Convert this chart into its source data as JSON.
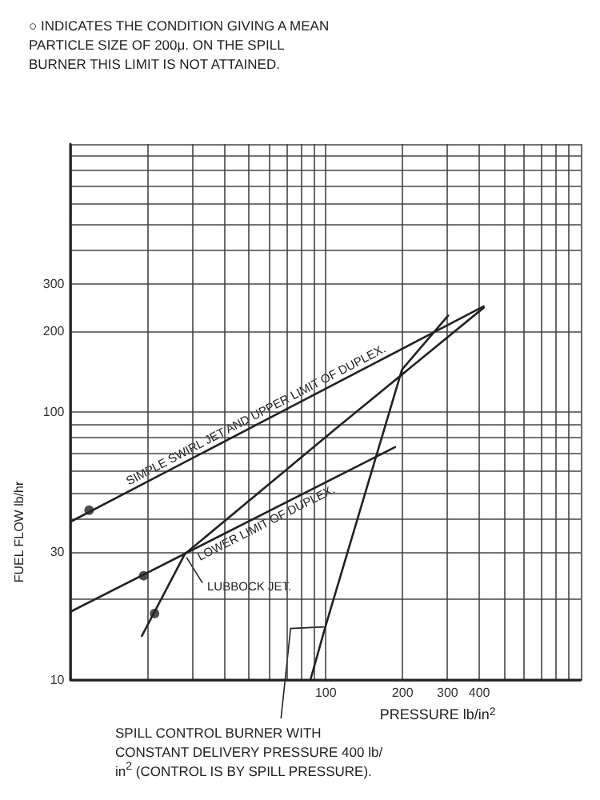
{
  "chart_data": {
    "type": "line",
    "xlabel": "PRESSURE lb/in$^{2}$",
    "ylabel": "FUEL FLOW lb/hr",
    "log": "xy",
    "grid": true,
    "line_style": "solid",
    "marker": "none",
    "xlim": [
      10,
      1000
    ],
    "ylim": [
      10,
      1000
    ],
    "xticks": [
      {
        "value": 10,
        "label": null
      },
      {
        "value": 20,
        "label": null
      },
      {
        "value": 30,
        "label": null
      },
      {
        "value": 40,
        "label": null
      },
      {
        "value": 50,
        "label": null
      },
      {
        "value": 60,
        "label": null
      },
      {
        "value": 70,
        "label": null
      },
      {
        "value": 80,
        "label": null
      },
      {
        "value": 90,
        "label": null
      },
      100,
      200,
      300,
      400,
      {
        "value": 500,
        "label": null
      },
      {
        "value": 600,
        "label": null
      },
      {
        "value": 700,
        "label": null
      },
      {
        "value": 800,
        "label": null
      },
      {
        "value": 900,
        "label": null
      },
      {
        "value": 1000,
        "label": null
      }
    ],
    "yticks": [
      10,
      {
        "value": 20,
        "label": null
      },
      30,
      {
        "value": 40,
        "label": null
      },
      {
        "value": 50,
        "label": null
      },
      {
        "value": 60,
        "label": null
      },
      {
        "value": 70,
        "label": null
      },
      {
        "value": 80,
        "label": null
      },
      {
        "value": 90,
        "label": null
      },
      100,
      200,
      300,
      {
        "value": 400,
        "label": null
      },
      {
        "value": 500,
        "label": null
      },
      {
        "value": 600,
        "label": null
      },
      {
        "value": 700,
        "label": null
      },
      {
        "value": 800,
        "label": null
      },
      {
        "value": 900,
        "label": null
      },
      {
        "value": 1000,
        "label": null
      }
    ],
    "series": [
      {
        "name": "SIMPLE SWIRL JET AND UPPER LIMIT OF DUPLEX.",
        "color": "#222222",
        "x": [
          10,
          416
        ],
        "values": [
          39,
          248
        ]
      },
      {
        "name": "LOWER LIMIT OF DUPLEX.",
        "color": "#222222",
        "x": [
          10,
          187
        ],
        "values": [
          18,
          74
        ]
      },
      {
        "name": "LUBBOCK JET.",
        "color": "#222222",
        "x": [
          19,
          28,
          110,
          416
        ],
        "values": [
          14.6,
          29.5,
          87,
          245
        ]
      },
      {
        "color": "#222222",
        "x": [
          87,
          100,
          199,
          302
        ],
        "values": [
          10,
          16,
          144,
          229
        ]
      },
      {
        "type": "scatter",
        "marker": "circle",
        "color": "#222222",
        "x": [
          11.8,
          19.3,
          21.3
        ],
        "values": [
          43,
          24.5,
          17.7
        ]
      }
    ],
    "annotations": [
      "○ INDICATES THE CONDITION GIVING A MEAN PARTICLE SIZE OF 200μ. ON THE SPILL BURNER THIS LIMIT IS NOT ATTAINED.",
      {
        "text": "SPILL CONTROL BURNER WITH CONSTANT DELIVERY PRESSURE 400 lb/in$^{2}$ (CONTROL IS BY SPILL PRESSURE).",
        "x": 100,
        "y": 16
      }
    ]
  }
}
